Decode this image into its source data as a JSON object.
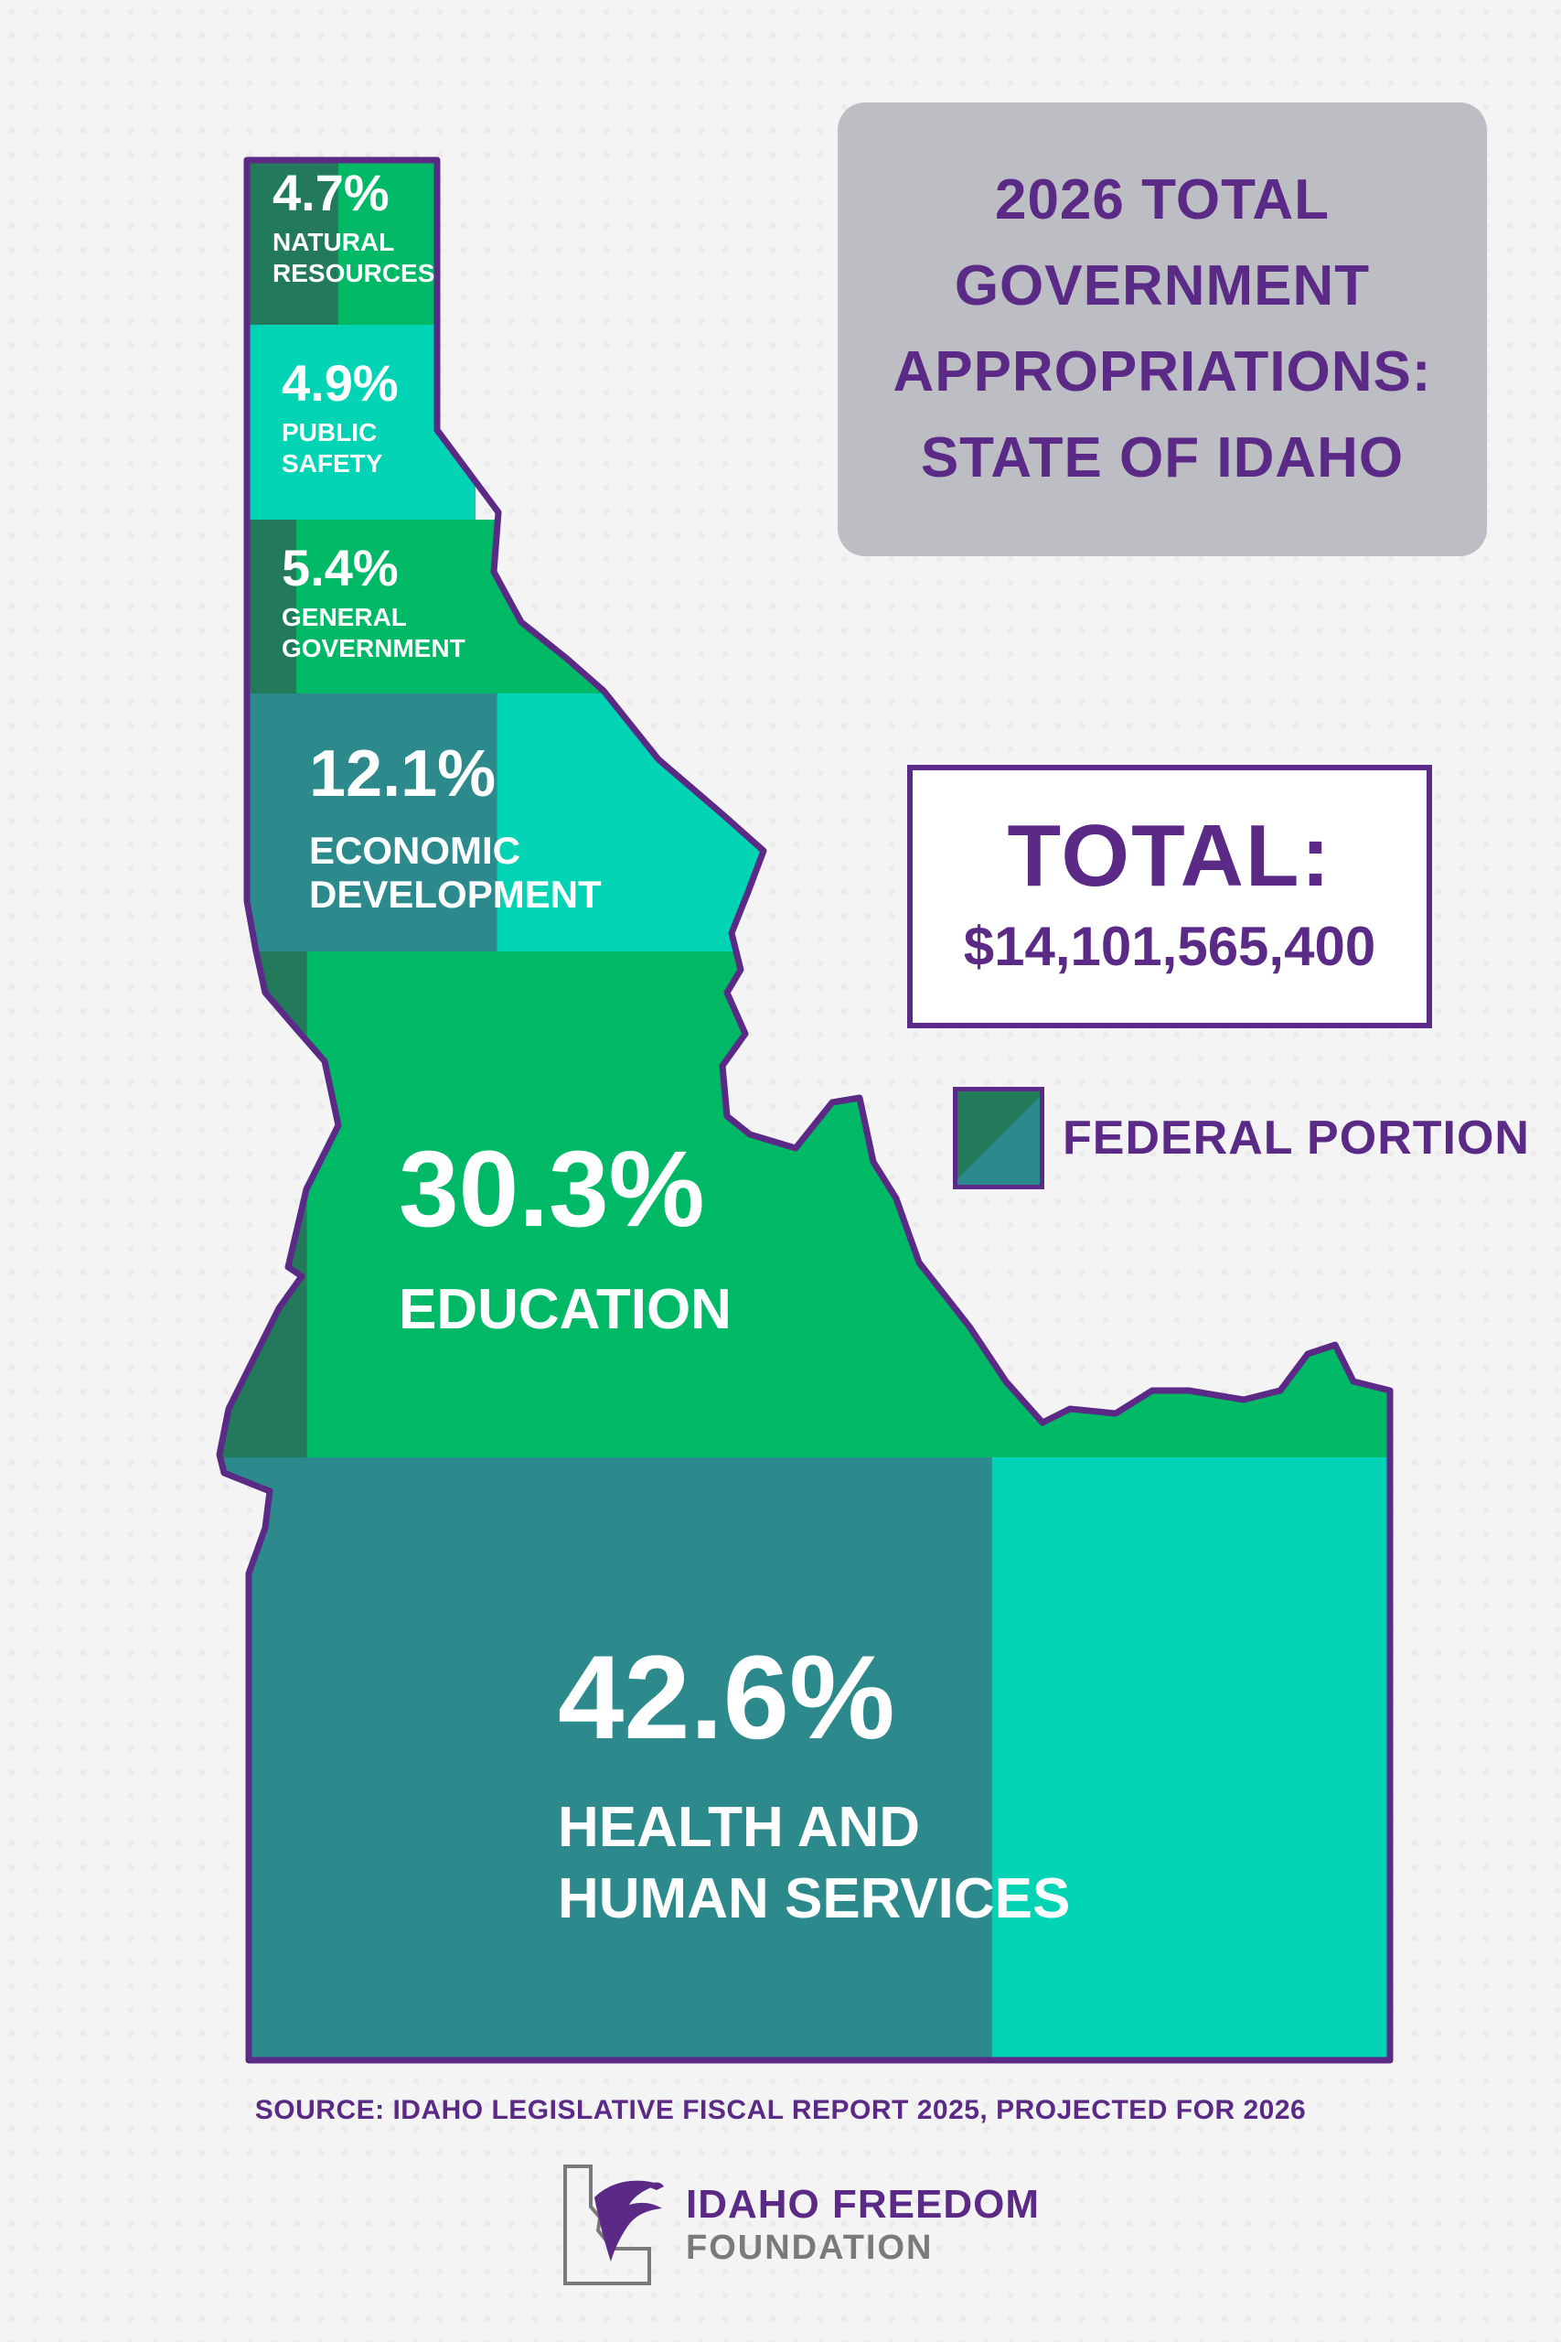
{
  "title": "2026 TOTAL GOVERNMENT APPROPRIATIONS: STATE OF IDAHO",
  "total": {
    "label": "TOTAL:",
    "value": "$14,101,565,400"
  },
  "legend": {
    "federal_label": "FEDERAL PORTION"
  },
  "source": "SOURCE: IDAHO LEGISLATIVE FISCAL REPORT 2025, PROJECTED FOR 2026",
  "logo": {
    "line1": "IDAHO FREEDOM",
    "line2": "FOUNDATION"
  },
  "colors": {
    "purple": "#5b2a86",
    "federal": "#2d8a8c",
    "federal_dark": "#237a5b",
    "green": "#00b967",
    "aqua": "#00d4b5"
  },
  "chart_data": {
    "type": "treemap",
    "title": "2026 TOTAL GOVERNMENT APPROPRIATIONS: STATE OF IDAHO",
    "total": "$14,101,565,400",
    "unit": "%",
    "categories": [
      "NATURAL RESOURCES",
      "PUBLIC SAFETY",
      "GENERAL GOVERNMENT",
      "ECONOMIC DEVELOPMENT",
      "EDUCATION",
      "HEALTH AND HUMAN SERVICES"
    ],
    "values": [
      4.7,
      4.9,
      5.4,
      12.1,
      30.3,
      42.6
    ],
    "value_labels": [
      "4.7%",
      "4.9%",
      "5.4%",
      "12.1%",
      "30.3%",
      "42.6%"
    ],
    "label_lines": [
      [
        "NATURAL",
        "RESOURCES"
      ],
      [
        "PUBLIC",
        "SAFETY"
      ],
      [
        "GENERAL",
        "GOVERNMENT"
      ],
      [
        "ECONOMIC",
        "DEVELOPMENT"
      ],
      [
        "EDUCATION"
      ],
      [
        "HEALTH AND",
        "HUMAN SERVICES"
      ]
    ],
    "federal_share": [
      0.48,
      0.0,
      0.12,
      0.48,
      0.08,
      0.66
    ],
    "legend": [
      "FEDERAL PORTION"
    ]
  }
}
